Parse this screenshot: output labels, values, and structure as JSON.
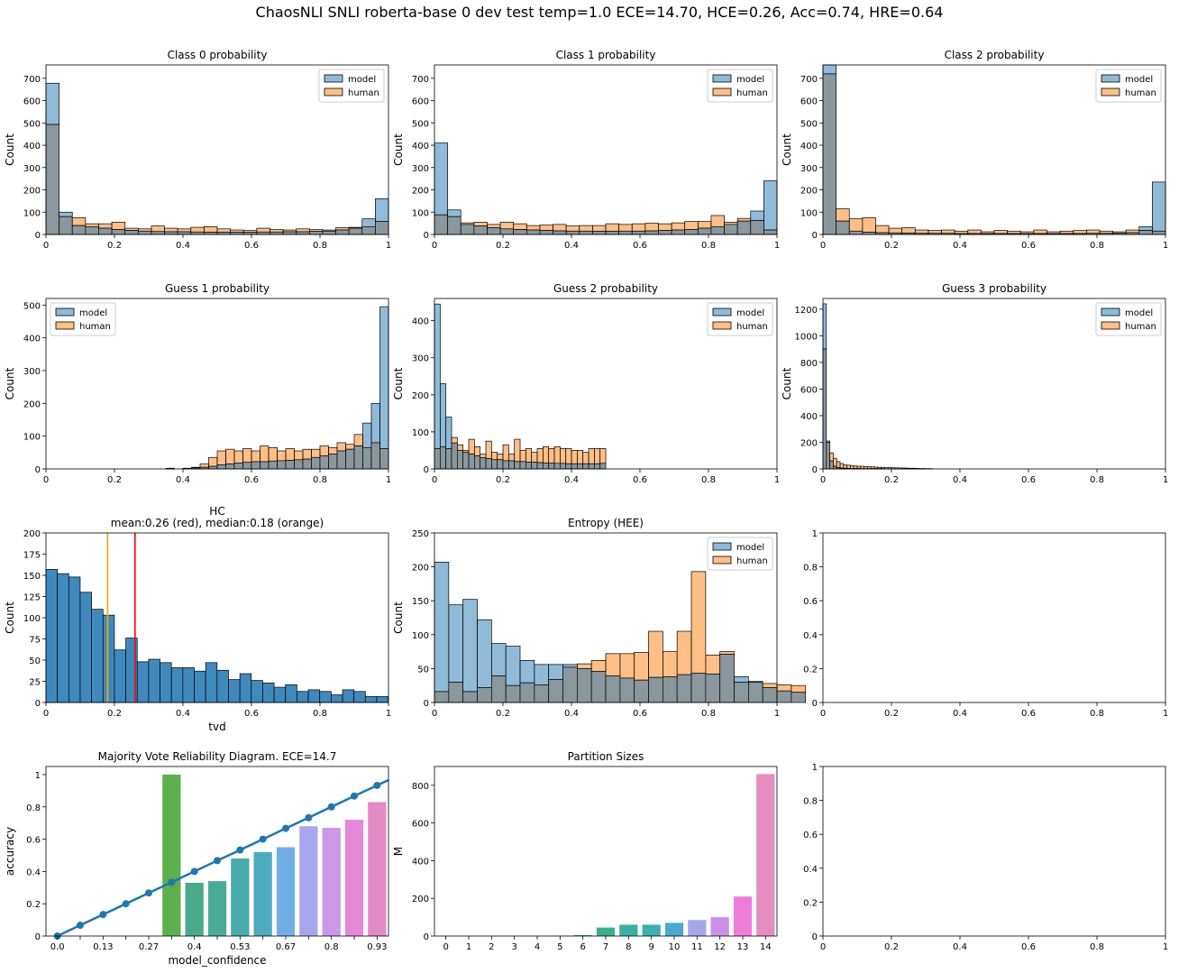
{
  "figure": {
    "suptitle": "ChaosNLI SNLI  roberta-base 0 dev  test  temp=1.0 ECE=14.70, HCE=0.26, Acc=0.74, HRE=0.64"
  },
  "colors": {
    "model": "#1f77b4",
    "human": "#ff7f0e",
    "overlap": "#8a979c",
    "hc_bar": "#3f89bd",
    "mean_line": "#ff0000",
    "median_line": "#ffa500",
    "diag_line": "#1f77b4"
  },
  "chart_data": [
    {
      "id": "class0",
      "type": "histogram",
      "title": "Class 0 probability",
      "xlabel": "",
      "ylabel": "Count",
      "xlim": [
        0,
        1
      ],
      "ylim": [
        0,
        760
      ],
      "xticks": [
        0,
        0.2,
        0.4,
        0.6,
        0.8,
        1.0
      ],
      "yticks": [
        0,
        100,
        200,
        300,
        400,
        500,
        600,
        700
      ],
      "legend": {
        "position": "top-right",
        "entries": [
          "model",
          "human"
        ]
      },
      "bins": 26,
      "series": [
        {
          "name": "model",
          "values": [
            678,
            100,
            40,
            35,
            28,
            22,
            18,
            15,
            13,
            12,
            12,
            11,
            10,
            10,
            10,
            10,
            11,
            11,
            12,
            12,
            14,
            15,
            20,
            28,
            70,
            160
          ]
        },
        {
          "name": "human",
          "values": [
            493,
            80,
            75,
            48,
            48,
            55,
            28,
            25,
            38,
            28,
            25,
            32,
            35,
            25,
            20,
            18,
            28,
            22,
            20,
            25,
            22,
            20,
            30,
            32,
            35,
            58
          ]
        }
      ]
    },
    {
      "id": "class1",
      "type": "histogram",
      "title": "Class 1 probability",
      "xlabel": "",
      "ylabel": "Count",
      "xlim": [
        0,
        1
      ],
      "ylim": [
        0,
        760
      ],
      "xticks": [
        0,
        0.2,
        0.4,
        0.6,
        0.8,
        1.0
      ],
      "yticks": [
        0,
        100,
        200,
        300,
        400,
        500,
        600,
        700
      ],
      "legend": {
        "position": "top-right",
        "entries": [
          "model",
          "human"
        ]
      },
      "bins": 26,
      "series": [
        {
          "name": "model",
          "values": [
            410,
            110,
            45,
            38,
            30,
            25,
            22,
            20,
            18,
            16,
            15,
            15,
            14,
            14,
            15,
            15,
            16,
            18,
            20,
            22,
            28,
            35,
            45,
            60,
            105,
            240
          ]
        },
        {
          "name": "human",
          "values": [
            88,
            80,
            52,
            55,
            45,
            55,
            48,
            40,
            42,
            45,
            38,
            40,
            40,
            48,
            45,
            48,
            50,
            48,
            52,
            58,
            58,
            85,
            55,
            72,
            62,
            20
          ]
        }
      ]
    },
    {
      "id": "class2",
      "type": "histogram",
      "title": "Class 2 probability",
      "xlabel": "",
      "ylabel": "Count",
      "xlim": [
        0,
        1
      ],
      "ylim": [
        0,
        760
      ],
      "xticks": [
        0,
        0.2,
        0.4,
        0.6,
        0.8,
        1.0
      ],
      "yticks": [
        0,
        100,
        200,
        300,
        400,
        500,
        600,
        700
      ],
      "legend": {
        "position": "top-right",
        "entries": [
          "model",
          "human"
        ]
      },
      "bins": 26,
      "series": [
        {
          "name": "model",
          "values": [
            760,
            60,
            15,
            10,
            8,
            7,
            6,
            5,
            5,
            5,
            4,
            4,
            4,
            4,
            4,
            4,
            4,
            4,
            4,
            4,
            5,
            5,
            6,
            8,
            35,
            235
          ]
        },
        {
          "name": "human",
          "values": [
            720,
            115,
            70,
            75,
            40,
            28,
            30,
            20,
            18,
            20,
            15,
            20,
            12,
            18,
            15,
            12,
            20,
            12,
            15,
            18,
            20,
            15,
            12,
            20,
            18,
            15
          ]
        }
      ]
    },
    {
      "id": "guess1",
      "type": "histogram",
      "title": "Guess 1 probability",
      "xlabel": "",
      "ylabel": "Count",
      "xlim": [
        0,
        1
      ],
      "ylim": [
        0,
        520
      ],
      "xticks": [
        0,
        0.2,
        0.4,
        0.6,
        0.8,
        1.0
      ],
      "yticks": [
        0,
        100,
        200,
        300,
        400,
        500
      ],
      "legend": {
        "position": "top-left",
        "entries": [
          "model",
          "human"
        ]
      },
      "binStart": 0.35,
      "binWidth": 0.025,
      "series": [
        {
          "name": "model",
          "values": [
            2,
            0,
            1,
            3,
            5,
            8,
            12,
            15,
            18,
            20,
            22,
            22,
            24,
            25,
            26,
            28,
            30,
            35,
            40,
            45,
            55,
            60,
            70,
            140,
            200,
            495
          ]
        },
        {
          "name": "human",
          "values": [
            0,
            0,
            2,
            5,
            15,
            35,
            55,
            60,
            55,
            62,
            55,
            70,
            65,
            55,
            62,
            55,
            60,
            60,
            70,
            65,
            80,
            75,
            105,
            65,
            80,
            62
          ]
        }
      ]
    },
    {
      "id": "guess2",
      "type": "histogram",
      "title": "Guess 2 probability",
      "xlabel": "",
      "ylabel": "Count",
      "xlim": [
        0,
        1
      ],
      "ylim": [
        0,
        460
      ],
      "xticks": [
        0,
        0.2,
        0.4,
        0.6,
        0.8,
        1.0
      ],
      "yticks": [
        0,
        100,
        200,
        300,
        400
      ],
      "legend": {
        "position": "top-right",
        "entries": [
          "model",
          "human"
        ]
      },
      "binStart": 0.0,
      "binWidth": 0.01667,
      "series": [
        {
          "name": "model",
          "values": [
            445,
            230,
            140,
            70,
            50,
            45,
            40,
            35,
            30,
            28,
            25,
            25,
            22,
            22,
            20,
            20,
            18,
            18,
            17,
            16,
            16,
            15,
            15,
            14,
            14,
            14,
            14,
            14,
            14,
            15
          ]
        },
        {
          "name": "human",
          "values": [
            55,
            60,
            55,
            85,
            65,
            50,
            80,
            60,
            40,
            75,
            45,
            40,
            65,
            40,
            80,
            50,
            55,
            45,
            55,
            60,
            55,
            60,
            55,
            55,
            50,
            50,
            45,
            55,
            55,
            55
          ]
        }
      ]
    },
    {
      "id": "guess3",
      "type": "histogram",
      "title": "Guess 3 probability",
      "xlabel": "",
      "ylabel": "Count",
      "xlim": [
        0,
        1
      ],
      "ylim": [
        0,
        1280
      ],
      "xticks": [
        0,
        0.2,
        0.4,
        0.6,
        0.8,
        1.0
      ],
      "yticks": [
        0,
        200,
        400,
        600,
        800,
        1000,
        1200
      ],
      "legend": {
        "position": "top-right",
        "entries": [
          "model",
          "human"
        ]
      },
      "binStart": 0.0,
      "binWidth": 0.01,
      "series": [
        {
          "name": "model",
          "values": [
            1240,
            200,
            60,
            20,
            10,
            6,
            5,
            4,
            3,
            3,
            3,
            2,
            2,
            2,
            2,
            2,
            2,
            2,
            1,
            1,
            1,
            1,
            1,
            1,
            1,
            1,
            1,
            1,
            1,
            1,
            1,
            1
          ]
        },
        {
          "name": "human",
          "values": [
            900,
            210,
            120,
            80,
            55,
            40,
            30,
            28,
            25,
            22,
            20,
            20,
            18,
            16,
            15,
            14,
            12,
            12,
            10,
            10,
            9,
            8,
            8,
            7,
            6,
            5,
            5,
            4,
            3,
            3,
            2,
            2
          ]
        }
      ]
    },
    {
      "id": "hc",
      "type": "histogram",
      "title": "HC",
      "subtitle": "mean:0.26 (red), median:0.18 (orange)",
      "xlabel": "tvd",
      "ylabel": "Count",
      "xlim": [
        0,
        1
      ],
      "ylim": [
        0,
        200
      ],
      "xticks": [
        0,
        0.2,
        0.4,
        0.6,
        0.8,
        1.0
      ],
      "yticks": [
        0,
        25,
        50,
        75,
        100,
        125,
        150,
        175,
        200
      ],
      "binStart": 0.0,
      "binWidth": 0.0333,
      "mean": 0.26,
      "median": 0.18,
      "series": [
        {
          "name": "tvd",
          "values": [
            157,
            152,
            148,
            130,
            110,
            103,
            62,
            76,
            48,
            51,
            47,
            41,
            41,
            37,
            47,
            38,
            27,
            34,
            26,
            23,
            18,
            21,
            13,
            15,
            13,
            9,
            15,
            13,
            7,
            7
          ]
        }
      ]
    },
    {
      "id": "entropy",
      "type": "histogram",
      "title": "Entropy (HEE)",
      "xlabel": "",
      "ylabel": "Count",
      "xlim": [
        0,
        1
      ],
      "ylim": [
        0,
        250
      ],
      "xticks": [
        0,
        0.2,
        0.4,
        0.6,
        0.8,
        1.0
      ],
      "yticks": [
        0,
        50,
        100,
        150,
        200,
        250
      ],
      "legend": {
        "position": "top-right",
        "entries": [
          "model",
          "human"
        ]
      },
      "binStart": 0.0,
      "binWidth": 0.04167,
      "series": [
        {
          "name": "model",
          "values": [
            207,
            144,
            152,
            122,
            87,
            83,
            62,
            56,
            56,
            56,
            50,
            46,
            39,
            36,
            33,
            37,
            38,
            41,
            43,
            42,
            71,
            38,
            31,
            22,
            17,
            15
          ]
        },
        {
          "name": "human",
          "values": [
            16,
            30,
            16,
            22,
            39,
            25,
            29,
            26,
            34,
            52,
            57,
            62,
            72,
            72,
            74,
            105,
            75,
            105,
            193,
            70,
            75,
            30,
            30,
            28,
            26,
            25
          ]
        }
      ]
    },
    {
      "id": "empty1",
      "type": "empty",
      "xlim": [
        0,
        1
      ],
      "ylim": [
        0,
        1
      ],
      "xticks": [
        0,
        0.2,
        0.4,
        0.6,
        0.8,
        1.0
      ],
      "yticks": [
        0,
        0.2,
        0.4,
        0.6,
        0.8,
        1.0
      ]
    },
    {
      "id": "reliability",
      "type": "bar",
      "title": "Majority Vote Reliability Diagram. ECE=14.7",
      "xlabel": "model_confidence",
      "ylabel": "accuracy",
      "categories": [
        0.0,
        0.067,
        0.13,
        0.2,
        0.27,
        0.33,
        0.4,
        0.47,
        0.53,
        0.6,
        0.67,
        0.73,
        0.8,
        0.87,
        0.93
      ],
      "xtick_labels": [
        "0.0",
        "0.13",
        "0.27",
        "0.4",
        "0.53",
        "0.67",
        "0.8",
        "0.93"
      ],
      "xtick_indices": [
        0,
        2,
        4,
        6,
        8,
        10,
        12,
        14
      ],
      "values": [
        0,
        0,
        0,
        0,
        0,
        1.0,
        0.33,
        0.34,
        0.48,
        0.52,
        0.55,
        0.68,
        0.67,
        0.72,
        0.83
      ],
      "bar_colors": [
        "#ffffff",
        "#ffffff",
        "#ffffff",
        "#ffffff",
        "#ffffff",
        "#5db14c",
        "#4aaa8a",
        "#49aa98",
        "#49aaaa",
        "#4aacbe",
        "#71aee6",
        "#a7a6ec",
        "#cd96e6",
        "#e389d8",
        "#e289c6"
      ],
      "ylim": [
        0,
        1.05
      ],
      "yticks": [
        0,
        0.2,
        0.4,
        0.6,
        0.8,
        1.0
      ],
      "line_series": {
        "name": "diagonal",
        "values": [
          0.0,
          0.067,
          0.133,
          0.2,
          0.267,
          0.333,
          0.4,
          0.467,
          0.533,
          0.6,
          0.667,
          0.733,
          0.8,
          0.867,
          0.933
        ]
      }
    },
    {
      "id": "partitions",
      "type": "bar",
      "title": "Partition Sizes",
      "xlabel": "",
      "ylabel": "M",
      "categories": [
        "0",
        "1",
        "2",
        "3",
        "4",
        "5",
        "6",
        "7",
        "8",
        "9",
        "10",
        "11",
        "12",
        "13",
        "14"
      ],
      "values": [
        0,
        0,
        0,
        0,
        0,
        1,
        5,
        45,
        60,
        60,
        70,
        85,
        100,
        210,
        860
      ],
      "bar_colors": [
        "#f37b7b",
        "#f08e3e",
        "#d49b32",
        "#b4a432",
        "#97ae32",
        "#5ebb3c",
        "#3ab56e",
        "#3ab08d",
        "#3bb0a2",
        "#3eaeb5",
        "#4aa9d1",
        "#a5a7ed",
        "#cc8fe8",
        "#ee7dd9",
        "#e58dbf"
      ],
      "ylim": [
        0,
        900
      ],
      "yticks": [
        0,
        200,
        400,
        600,
        800
      ]
    },
    {
      "id": "empty2",
      "type": "empty",
      "xlim": [
        0,
        1
      ],
      "ylim": [
        0,
        1
      ],
      "xticks": [
        0,
        0.2,
        0.4,
        0.6,
        0.8,
        1.0
      ],
      "yticks": [
        0,
        0.2,
        0.4,
        0.6,
        0.8,
        1.0
      ]
    }
  ]
}
